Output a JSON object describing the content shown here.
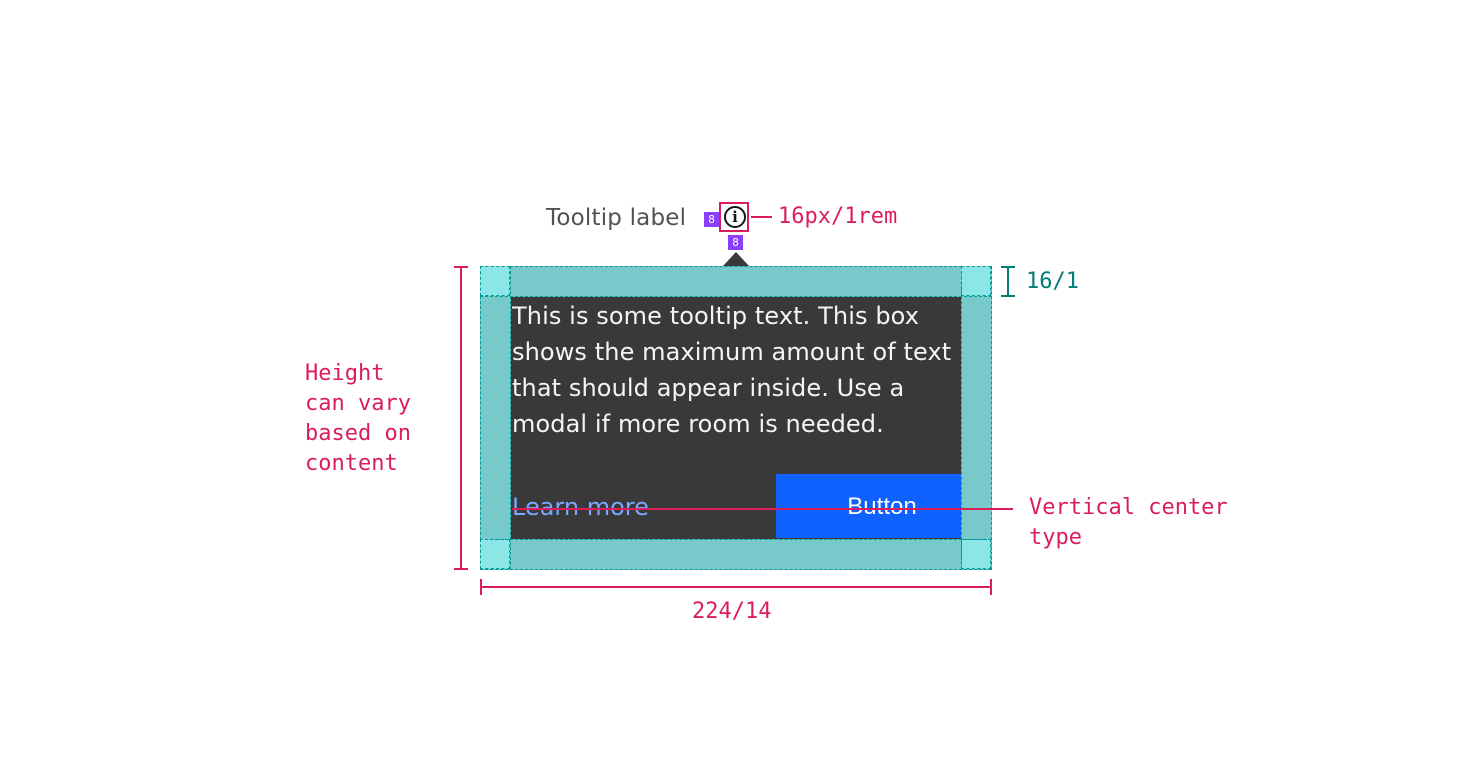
{
  "tooltip": {
    "label": "Tooltip label",
    "icon": "information-icon",
    "body": "This is some tooltip text. This box shows the maximum amount of text that should appear inside. Use a modal if more room is needed.",
    "link_text": "Learn more",
    "button_label": "Button"
  },
  "annotations": {
    "spacing_label_icon": "8",
    "spacing_icon_caret": "8",
    "icon_size": "16px/1rem",
    "padding": "16/1",
    "height_note": [
      "Height",
      "can vary",
      "based on",
      "content"
    ],
    "vertical_center_note": [
      "Vertical center",
      "type"
    ],
    "width": "224/14"
  },
  "colors": {
    "annotation_pink": "#da1e5a",
    "annotation_teal": "#007d79",
    "spacing_badge": "#8a3ffc",
    "padding_fill": "#78c9c9",
    "tooltip_background": "#393939",
    "link": "#78a9ff",
    "button": "#0f62fe"
  }
}
